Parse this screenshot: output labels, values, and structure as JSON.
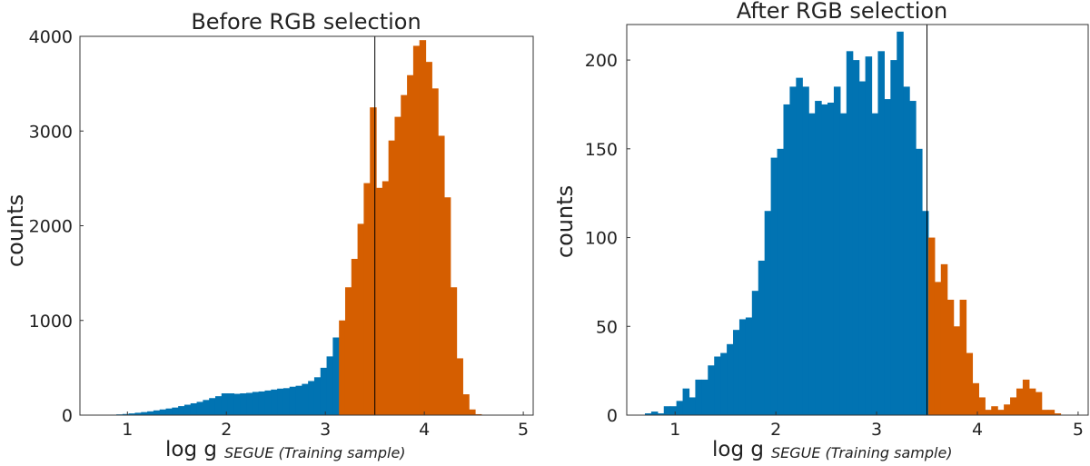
{
  "colors": {
    "blue": "#0173b2",
    "orange": "#d55e00"
  },
  "chart_data": [
    {
      "type": "bar",
      "title": "Before RGB selection",
      "ylabel": "counts",
      "xlabel": {
        "main": "log g",
        "subscript": "SEGUE (Training sample)"
      },
      "xlim": [
        0.52,
        5.1
      ],
      "ylim": [
        0,
        4000
      ],
      "yticks": [
        0,
        1000,
        2000,
        3000,
        4000
      ],
      "xticks": [
        1,
        2,
        3,
        4,
        5
      ],
      "cut": 3.5,
      "bin_start": 0.7,
      "bin_width": 0.0625,
      "series": [
        {
          "values": [
            3,
            3,
            5,
            8,
            12,
            18,
            25,
            32,
            40,
            50,
            60,
            70,
            80,
            95,
            110,
            125,
            140,
            160,
            180,
            200,
            230,
            230,
            225,
            230,
            235,
            245,
            250,
            260,
            270,
            280,
            285,
            300,
            310,
            330,
            360,
            400,
            500,
            620,
            820
          ]
        },
        {
          "values": [
            1000,
            1350,
            1650,
            2020,
            2450,
            3250,
            2400,
            2470,
            2900,
            3150,
            3380,
            3590,
            3900,
            3960,
            3730,
            3450,
            2950,
            2300,
            1350,
            600,
            220,
            60,
            10
          ]
        }
      ]
    },
    {
      "type": "bar",
      "title": "After RGB selection",
      "ylabel": "counts",
      "xlabel": {
        "main": "log g",
        "subscript": "SEGUE (Training sample)"
      },
      "xlim": [
        0.52,
        5.1
      ],
      "ylim": [
        0,
        220
      ],
      "yticks": [
        0,
        50,
        100,
        150,
        200
      ],
      "xticks": [
        1,
        2,
        3,
        4,
        5
      ],
      "cut": 3.5,
      "bin_start": 0.7,
      "bin_width": 0.0625,
      "series": [
        {
          "values": [
            1,
            2,
            1,
            5,
            5,
            8,
            15,
            10,
            20,
            20,
            28,
            33,
            35,
            40,
            48,
            54,
            55,
            70,
            87,
            115,
            145,
            150,
            175,
            185,
            190,
            185,
            170,
            177,
            175,
            176,
            185,
            170,
            205,
            200,
            188,
            202,
            170,
            205,
            178,
            200,
            216,
            185,
            177,
            150,
            115
          ]
        },
        {
          "values": [
            100,
            75,
            85,
            65,
            50,
            65,
            35,
            18,
            10,
            3,
            5,
            3,
            6,
            10,
            15,
            20,
            15,
            13,
            3,
            3,
            1
          ]
        }
      ]
    }
  ]
}
